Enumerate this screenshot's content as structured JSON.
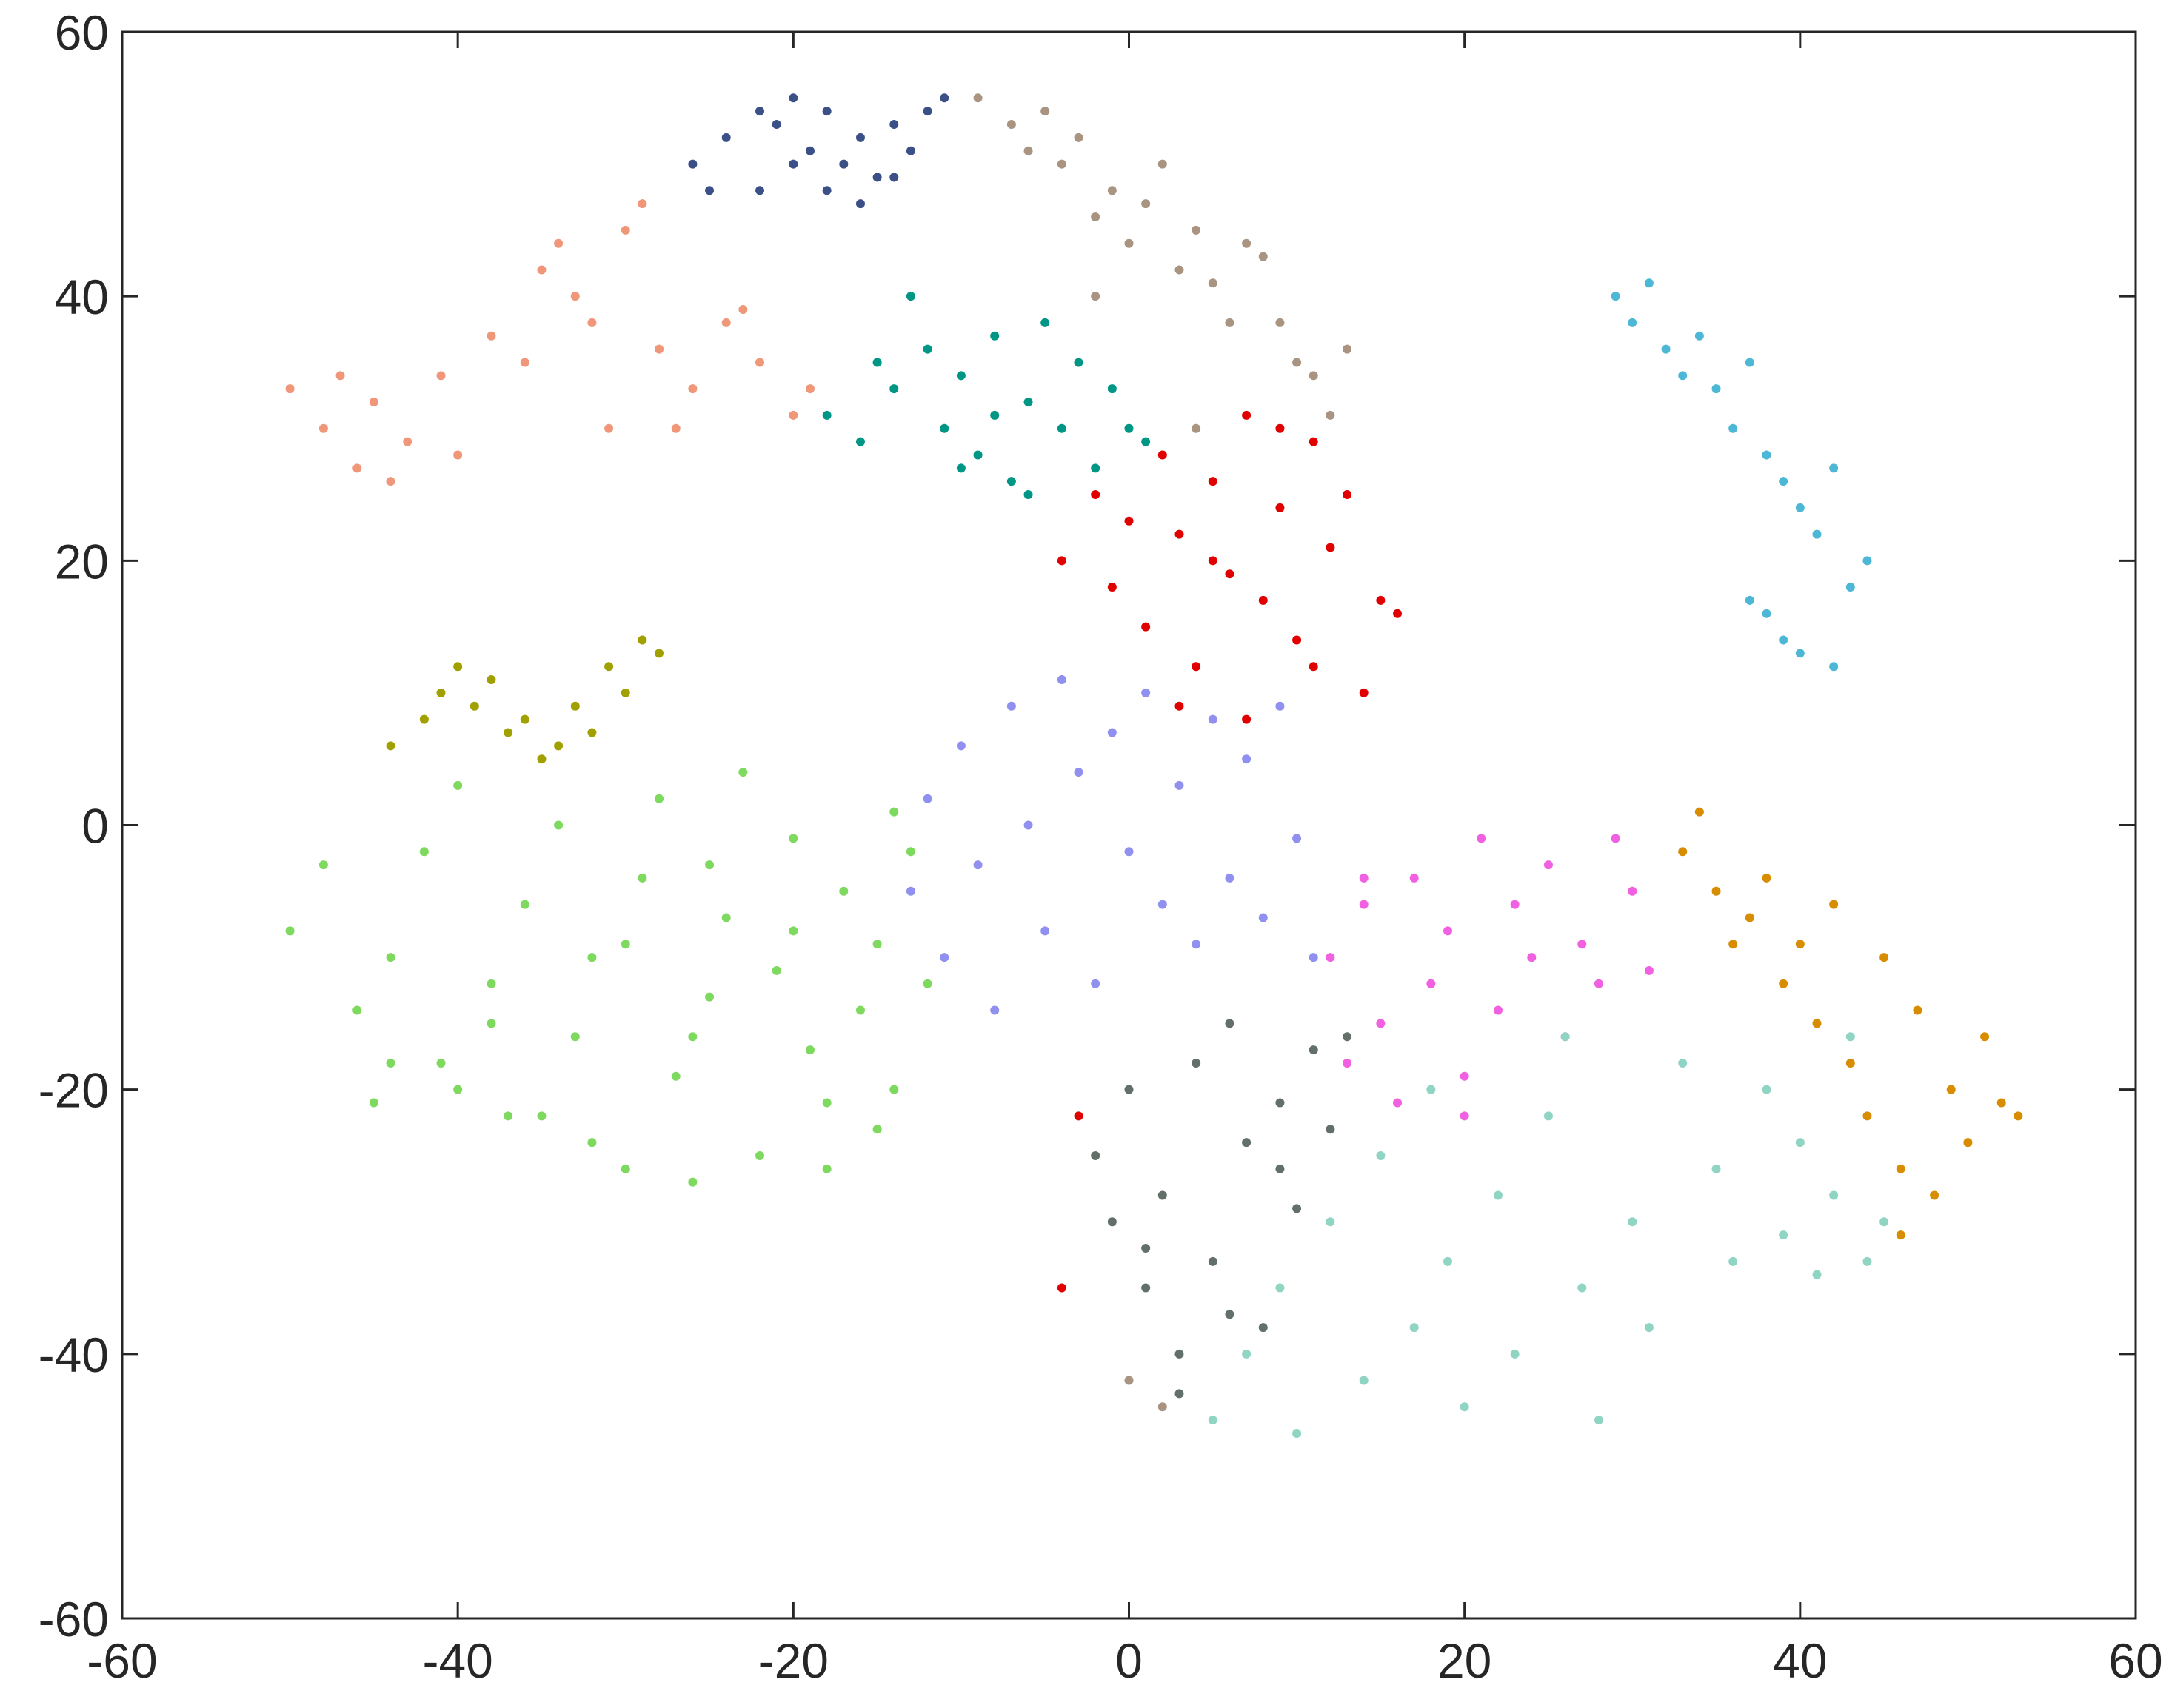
{
  "chart_data": {
    "type": "scatter",
    "xlim": [
      -60,
      60
    ],
    "ylim": [
      -60,
      60
    ],
    "xticks": [
      -60,
      -40,
      -20,
      0,
      20,
      40,
      60
    ],
    "yticks": [
      -60,
      -40,
      -20,
      0,
      20,
      40,
      60
    ],
    "series": [
      {
        "color": "#3a5087",
        "x": [
          -26,
          -24,
          -22,
          -21,
          -20,
          -19,
          -18,
          -17,
          -16,
          -15,
          -14,
          -13,
          -12,
          -11,
          -22,
          -18,
          -14,
          -25,
          -20,
          -16
        ],
        "values": [
          50,
          52,
          54,
          53,
          55,
          51,
          54,
          50,
          52,
          49,
          53,
          51,
          54,
          55,
          48,
          48,
          49,
          48,
          50,
          47
        ]
      },
      {
        "color": "#a89480",
        "x": [
          -9,
          -7,
          -5,
          -4,
          -3,
          -2,
          -1,
          0,
          1,
          2,
          3,
          4,
          5,
          6,
          7,
          8,
          9,
          10,
          11,
          12,
          13,
          -6,
          4,
          -2,
          0,
          2
        ],
        "values": [
          55,
          53,
          54,
          50,
          52,
          46,
          48,
          44,
          47,
          50,
          42,
          45,
          41,
          38,
          44,
          43,
          38,
          35,
          34,
          31,
          36,
          51,
          30,
          40,
          -42,
          -44
        ]
      },
      {
        "color": "#f0977a",
        "x": [
          -50,
          -48,
          -46,
          -45,
          -43,
          -41,
          -40,
          -38,
          -36,
          -35,
          -33,
          -32,
          -30,
          -29,
          -28,
          -26,
          -24,
          -22,
          -20,
          -19,
          -34,
          -31,
          -27,
          -23,
          -44,
          -47
        ],
        "values": [
          33,
          30,
          27,
          32,
          29,
          34,
          28,
          37,
          35,
          42,
          40,
          38,
          45,
          47,
          36,
          33,
          38,
          35,
          31,
          33,
          44,
          30,
          30,
          39,
          26,
          34
        ]
      },
      {
        "color": "#009685",
        "x": [
          -18,
          -16,
          -15,
          -14,
          -12,
          -11,
          -10,
          -9,
          -8,
          -7,
          -6,
          -5,
          -4,
          -3,
          -2,
          -1,
          0,
          1,
          -13,
          -8,
          -6,
          -10
        ],
        "values": [
          31,
          29,
          35,
          33,
          36,
          30,
          34,
          28,
          37,
          26,
          32,
          38,
          30,
          35,
          27,
          33,
          30,
          29,
          40,
          31,
          25,
          27
        ]
      },
      {
        "color": "#e00000",
        "x": [
          -4,
          -2,
          -1,
          0,
          1,
          2,
          3,
          4,
          5,
          6,
          7,
          8,
          9,
          10,
          11,
          12,
          13,
          14,
          15,
          16,
          3,
          7,
          11,
          9,
          5,
          -3,
          -4
        ],
        "values": [
          20,
          25,
          18,
          23,
          15,
          28,
          22,
          12,
          26,
          19,
          31,
          17,
          24,
          14,
          29,
          21,
          25,
          10,
          17,
          16,
          9,
          8,
          12,
          30,
          20,
          -22,
          -35
        ]
      },
      {
        "color": "#4cb8d6",
        "x": [
          29,
          30,
          31,
          32,
          33,
          34,
          35,
          36,
          37,
          38,
          39,
          40,
          41,
          42,
          43,
          44,
          38,
          40,
          37,
          39,
          42
        ],
        "values": [
          40,
          38,
          41,
          36,
          34,
          37,
          33,
          30,
          35,
          28,
          26,
          24,
          22,
          27,
          18,
          20,
          16,
          13,
          17,
          14,
          12
        ]
      },
      {
        "color": "#a0a000",
        "x": [
          -44,
          -42,
          -41,
          -40,
          -39,
          -38,
          -37,
          -36,
          -34,
          -32,
          -31,
          -30,
          -29,
          -28,
          -35,
          -33
        ],
        "values": [
          6,
          8,
          10,
          12,
          9,
          11,
          7,
          8,
          6,
          7,
          12,
          10,
          14,
          13,
          5,
          9
        ]
      },
      {
        "color": "#7ed95f",
        "x": [
          -50,
          -48,
          -46,
          -45,
          -44,
          -42,
          -41,
          -40,
          -38,
          -37,
          -36,
          -34,
          -33,
          -32,
          -30,
          -29,
          -28,
          -27,
          -26,
          -25,
          -24,
          -23,
          -22,
          -21,
          -20,
          -19,
          -18,
          -17,
          -16,
          -15,
          -14,
          -13,
          -12,
          -40,
          -35,
          -30,
          -25,
          -20,
          -15,
          -44,
          -38,
          -32,
          -26,
          -18,
          -14
        ],
        "values": [
          -8,
          -3,
          -14,
          -21,
          -10,
          -2,
          -18,
          3,
          -12,
          -22,
          -6,
          0,
          -16,
          -24,
          -9,
          -4,
          2,
          -19,
          -27,
          -13,
          -7,
          4,
          -25,
          -11,
          -1,
          -17,
          -21,
          -5,
          -14,
          -9,
          -20,
          -2,
          -12,
          -20,
          -22,
          -26,
          -3,
          -8,
          -23,
          -18,
          -15,
          -10,
          -16,
          -26,
          1
        ]
      },
      {
        "color": "#9090f0",
        "x": [
          -13,
          -12,
          -11,
          -10,
          -9,
          -8,
          -7,
          -6,
          -5,
          -4,
          -3,
          -2,
          -1,
          0,
          1,
          2,
          3,
          4,
          5,
          6,
          7,
          8,
          9,
          10,
          11
        ],
        "values": [
          -5,
          2,
          -10,
          6,
          -3,
          -14,
          9,
          0,
          -8,
          11,
          4,
          -12,
          7,
          -2,
          10,
          -6,
          3,
          -9,
          8,
          -4,
          5,
          -7,
          9,
          -1,
          -10
        ]
      },
      {
        "color": "#f060e0",
        "x": [
          12,
          13,
          14,
          15,
          16,
          17,
          18,
          19,
          20,
          21,
          22,
          23,
          24,
          25,
          26,
          27,
          28,
          29,
          30,
          31,
          14,
          20
        ],
        "values": [
          -10,
          -18,
          -6,
          -15,
          -21,
          -4,
          -12,
          -8,
          -19,
          -1,
          -14,
          -6,
          -10,
          -3,
          -16,
          -9,
          -12,
          -1,
          -5,
          -11,
          -4,
          -22
        ]
      },
      {
        "color": "#d88c00",
        "x": [
          33,
          34,
          35,
          36,
          37,
          38,
          39,
          40,
          41,
          42,
          43,
          44,
          45,
          46,
          47,
          48,
          49,
          50,
          51,
          52,
          53,
          46
        ],
        "values": [
          -2,
          1,
          -5,
          -9,
          -7,
          -4,
          -12,
          -9,
          -15,
          -6,
          -18,
          -22,
          -10,
          -26,
          -14,
          -28,
          -20,
          -24,
          -16,
          -21,
          -22,
          -31
        ]
      },
      {
        "color": "#627069",
        "x": [
          -2,
          -1,
          0,
          1,
          2,
          3,
          4,
          5,
          6,
          7,
          8,
          9,
          10,
          11,
          12,
          13,
          3,
          6,
          9,
          1
        ],
        "values": [
          -25,
          -30,
          -20,
          -35,
          -28,
          -40,
          -18,
          -33,
          -15,
          -24,
          -38,
          -21,
          -29,
          -17,
          -23,
          -16,
          -43,
          -37,
          -26,
          -32
        ]
      },
      {
        "color": "#90d4c4",
        "x": [
          5,
          7,
          9,
          10,
          12,
          14,
          15,
          17,
          19,
          20,
          22,
          23,
          25,
          27,
          28,
          30,
          31,
          33,
          35,
          36,
          38,
          39,
          40,
          41,
          42,
          43,
          44,
          45,
          18,
          26
        ],
        "values": [
          -45,
          -40,
          -35,
          -46,
          -30,
          -42,
          -25,
          -38,
          -33,
          -44,
          -28,
          -40,
          -22,
          -35,
          -45,
          -30,
          -38,
          -18,
          -26,
          -33,
          -20,
          -31,
          -24,
          -34,
          -28,
          -16,
          -33,
          -30,
          -20,
          -16
        ]
      }
    ]
  }
}
